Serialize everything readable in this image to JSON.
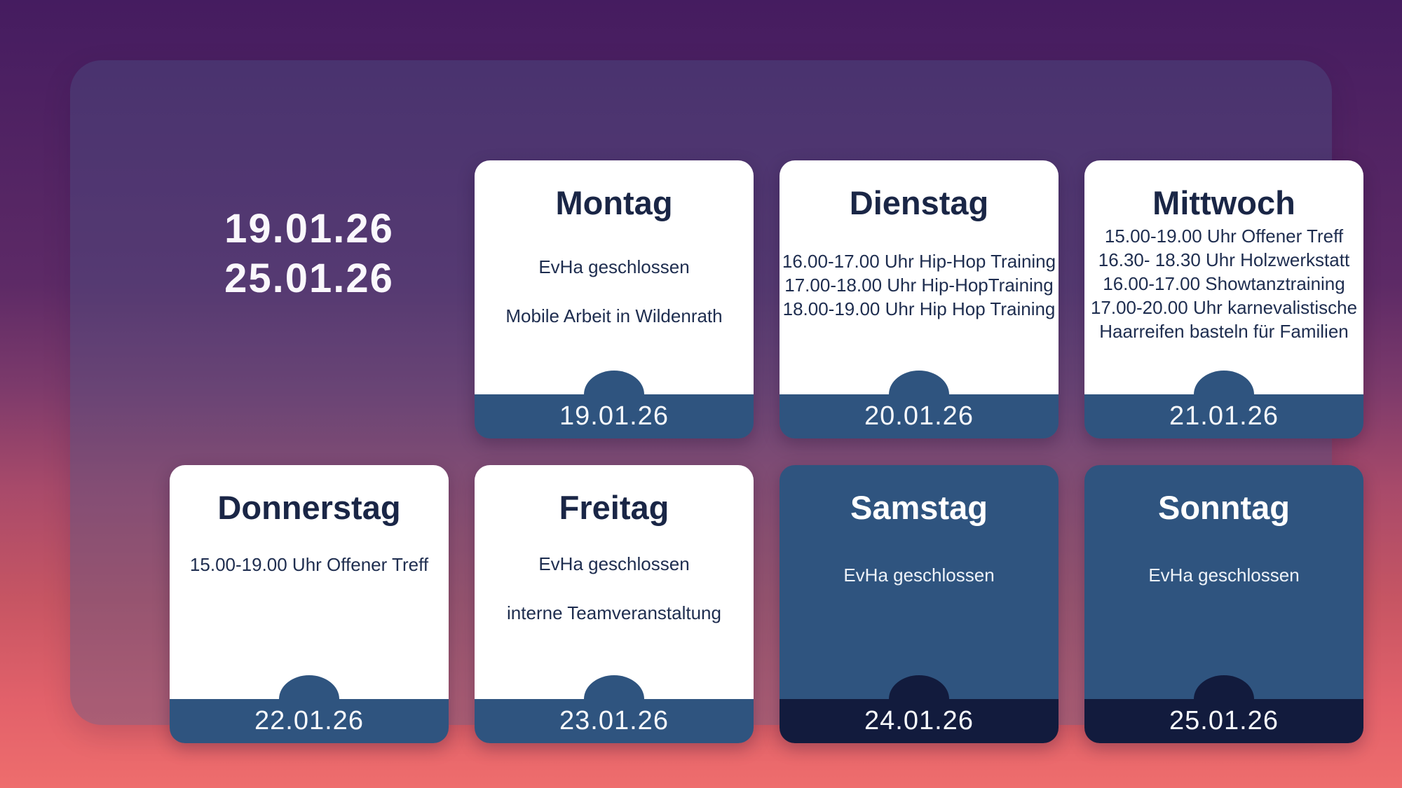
{
  "header": {
    "week_start": "19.01.26",
    "week_end": "25.01.26"
  },
  "colors": {
    "steel_blue": "#2F547F",
    "dark_navy": "#121B3D",
    "card_white": "#FFFFFF",
    "title_navy": "#1A2646",
    "event_navy": "#1E2D4F",
    "panel_overlay": "rgba(73,84,135,0.38)"
  },
  "background": {
    "gradient_stops": [
      "#451C60",
      "#5D2A66",
      "#7C3A6B",
      "#A84A6A",
      "#C65563",
      "#E2616A",
      "#EE6D6D"
    ]
  },
  "cards": [
    {
      "day": "Montag",
      "date": "19.01.26",
      "variant": "light",
      "events": [
        "EvHa geschlossen",
        "Mobile Arbeit in Wildenrath"
      ]
    },
    {
      "day": "Dienstag",
      "date": "20.01.26",
      "variant": "light",
      "events": [
        "16.00-17.00 Uhr Hip-Hop Training",
        "17.00-18.00 Uhr Hip-HopTraining",
        "18.00-19.00 Uhr Hip Hop Training"
      ]
    },
    {
      "day": "Mittwoch",
      "date": "21.01.26",
      "variant": "light",
      "events": [
        "15.00-19.00 Uhr Offener Treff",
        "16.30- 18.30 Uhr Holzwerkstatt",
        "16.00-17.00 Showtanztraining",
        "17.00-20.00 Uhr karnevalistische Haarreifen basteln für Familien"
      ]
    },
    {
      "day": "Donnerstag",
      "date": "22.01.26",
      "variant": "light",
      "events": [
        "15.00-19.00 Uhr Offener Treff"
      ]
    },
    {
      "day": "Freitag",
      "date": "23.01.26",
      "variant": "light",
      "events": [
        "EvHa geschlossen",
        "interne Teamveranstaltung"
      ]
    },
    {
      "day": "Samstag",
      "date": "24.01.26",
      "variant": "closed",
      "events": [
        "EvHa geschlossen"
      ]
    },
    {
      "day": "Sonntag",
      "date": "25.01.26",
      "variant": "closed",
      "events": [
        "EvHa geschlossen"
      ]
    }
  ]
}
